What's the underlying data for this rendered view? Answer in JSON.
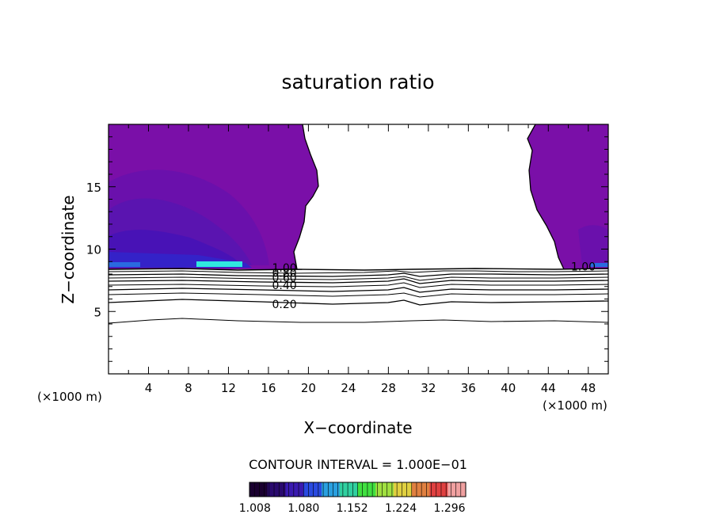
{
  "chart_data": {
    "type": "contour",
    "title": "saturation ratio",
    "xlabel": "X−coordinate",
    "ylabel": "Z−coordinate",
    "x_unit_left": "(×1000 m)",
    "x_unit_right": "(×1000 m)",
    "xlim": [
      0,
      50
    ],
    "ylim": [
      0,
      20
    ],
    "xticks": [
      4,
      8,
      12,
      16,
      20,
      24,
      28,
      32,
      36,
      40,
      44,
      48
    ],
    "xtick_labels": [
      "4",
      "8",
      "12",
      "16",
      "20",
      "24",
      "28",
      "32",
      "36",
      "40",
      "44",
      "48"
    ],
    "yticks": [
      5,
      10,
      15
    ],
    "ytick_labels": [
      "5",
      "10",
      "15"
    ],
    "contour_labels": [
      {
        "text": "1.00",
        "x": 17.6,
        "z": 8.5
      },
      {
        "text": "0.80",
        "x": 17.6,
        "z": 8.1
      },
      {
        "text": "0.60",
        "x": 17.6,
        "z": 7.7
      },
      {
        "text": "0.40",
        "x": 17.6,
        "z": 7.1
      },
      {
        "text": "0.20",
        "x": 17.6,
        "z": 5.6
      },
      {
        "text": "1.00",
        "x": 47.5,
        "z": 8.6
      }
    ],
    "contour_interval_text": "CONTOUR INTERVAL = 1.000E−01",
    "colorbar": {
      "tick_labels": [
        "1.008",
        "1.080",
        "1.152",
        "1.224",
        "1.296"
      ],
      "min": 1.0,
      "max": 1.32,
      "colors": [
        "#1a0030",
        "#2a0a6e",
        "#3a1ab0",
        "#2a4ae0",
        "#2aa0e0",
        "#30d0a0",
        "#40e040",
        "#a0e040",
        "#e0d040",
        "#e08040",
        "#e04040",
        "#f0a0a0"
      ]
    },
    "colors": {
      "supersaturated_base": "#7a0fa8",
      "mid_level": "#5c10ac",
      "deep_level": "#3a10b8",
      "edge_level": "#2f2ad0",
      "highlight": "#30e8e0"
    }
  }
}
